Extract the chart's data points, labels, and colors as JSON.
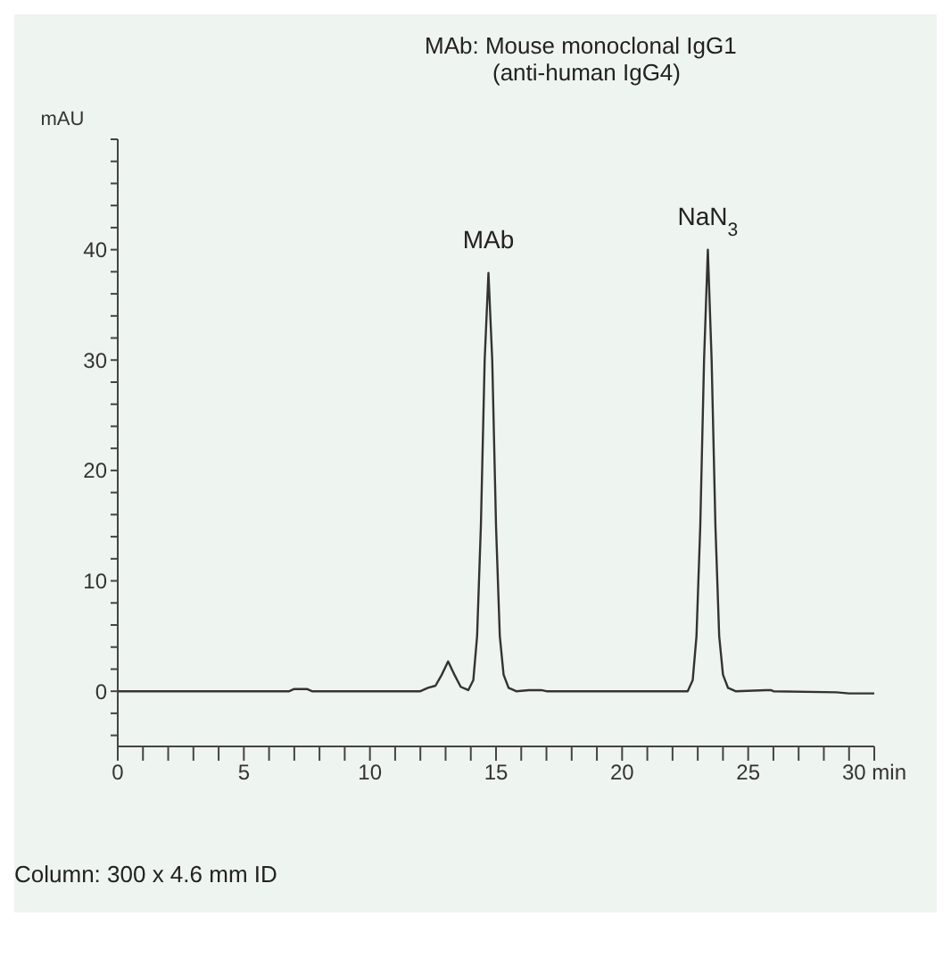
{
  "chart_data": {
    "type": "line",
    "title": "MAb:  Mouse monoclonal IgG1",
    "subtitle": "(anti-human IgG4)",
    "ylabel": "mAU",
    "x": [
      0,
      6.8,
      7,
      7.5,
      7.7,
      12.0,
      12.3,
      12.6,
      12.85,
      13.1,
      13.35,
      13.6,
      13.9,
      14.1,
      14.25,
      14.4,
      14.55,
      14.7,
      14.85,
      15.0,
      15.15,
      15.3,
      15.5,
      15.8,
      16.3,
      16.8,
      17,
      22.6,
      22.8,
      22.95,
      23.1,
      23.25,
      23.4,
      23.55,
      23.7,
      23.85,
      24.0,
      24.2,
      24.5,
      25.7,
      25.9,
      26.0,
      28.5,
      29,
      30
    ],
    "series": [
      {
        "color": "#333333",
        "values": [
          0,
          0,
          0.2,
          0.2,
          0,
          0,
          0.3,
          0.5,
          1.5,
          2.7,
          1.5,
          0.4,
          0.1,
          1,
          5,
          15,
          30,
          37.9,
          30,
          15,
          5,
          1.5,
          0.3,
          0,
          0.1,
          0.1,
          0,
          0,
          1,
          5,
          15,
          30,
          40,
          30,
          15,
          5,
          1.5,
          0.3,
          0,
          0.1,
          0.1,
          0,
          -0.1,
          -0.2,
          -0.2
        ]
      }
    ],
    "xlim": [
      0,
      30
    ],
    "xticks": [
      0,
      {
        "value": 1,
        "label": null
      },
      {
        "value": 2,
        "label": null
      },
      {
        "value": 3,
        "label": null
      },
      {
        "value": 4,
        "label": null
      },
      5,
      {
        "value": 6,
        "label": null
      },
      {
        "value": 7,
        "label": null
      },
      {
        "value": 8,
        "label": null
      },
      {
        "value": 9,
        "label": null
      },
      10,
      {
        "value": 11,
        "label": null
      },
      {
        "value": 12,
        "label": null
      },
      {
        "value": 13,
        "label": null
      },
      {
        "value": 14,
        "label": null
      },
      15,
      {
        "value": 16,
        "label": null
      },
      {
        "value": 17,
        "label": null
      },
      {
        "value": 18,
        "label": null
      },
      {
        "value": 19,
        "label": null
      },
      20,
      {
        "value": 21,
        "label": null
      },
      {
        "value": 22,
        "label": null
      },
      {
        "value": 23,
        "label": null
      },
      {
        "value": 24,
        "label": null
      },
      25,
      {
        "value": 26,
        "label": null
      },
      {
        "value": 27,
        "label": null
      },
      {
        "value": 28,
        "label": null
      },
      {
        "value": 29,
        "label": null
      },
      {
        "value": 30,
        "label": "30 min"
      }
    ],
    "ylim": [
      -5,
      50
    ],
    "yticks": [
      {
        "value": -4,
        "label": null
      },
      {
        "value": -2,
        "label": null
      },
      0,
      {
        "value": 2,
        "label": null
      },
      {
        "value": 4,
        "label": null
      },
      {
        "value": 6,
        "label": null
      },
      {
        "value": 8,
        "label": null
      },
      10,
      {
        "value": 12,
        "label": null
      },
      {
        "value": 14,
        "label": null
      },
      {
        "value": 16,
        "label": null
      },
      {
        "value": 18,
        "label": null
      },
      20,
      {
        "value": 22,
        "label": null
      },
      {
        "value": 24,
        "label": null
      },
      {
        "value": 26,
        "label": null
      },
      {
        "value": 28,
        "label": null
      },
      30,
      {
        "value": 32,
        "label": null
      },
      {
        "value": 34,
        "label": null
      },
      {
        "value": 36,
        "label": null
      },
      {
        "value": 38,
        "label": null
      },
      40,
      {
        "value": 42,
        "label": null
      },
      {
        "value": 44,
        "label": null
      },
      {
        "value": 46,
        "label": null
      },
      {
        "value": 48,
        "label": null
      },
      {
        "value": 50,
        "label": null
      }
    ],
    "grid": false,
    "legend": false,
    "marker": "none",
    "line_style": "solid",
    "annotations": [
      {
        "text": "MAb",
        "x": 14.7,
        "y": 37.9
      },
      {
        "text": "NaN$_{3}$",
        "x": 23.4,
        "y": 40
      },
      "Column:  300 x 4.6 mm ID"
    ]
  }
}
